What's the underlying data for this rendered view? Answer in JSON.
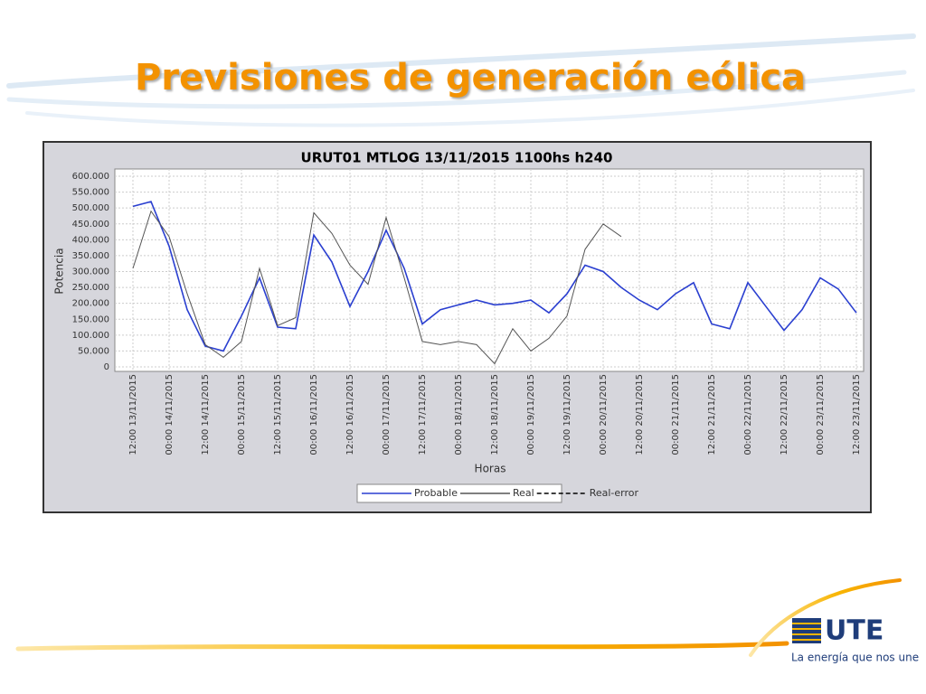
{
  "slide": {
    "title": "Previsiones de generación eólica",
    "logo": "UTE",
    "tagline": "La energía que nos une"
  },
  "chart_data": {
    "type": "line",
    "title": "URUT01  MTLOG  13/11/2015  1100hs   h240",
    "x_label": "Horas",
    "y_label": "Potencia",
    "x": [
      "13/11/2015 12:00",
      "13/11/2015 18:00",
      "14/11/2015 00:00",
      "14/11/2015 06:00",
      "14/11/2015 12:00",
      "14/11/2015 18:00",
      "15/11/2015 00:00",
      "15/11/2015 06:00",
      "15/11/2015 12:00",
      "15/11/2015 18:00",
      "16/11/2015 00:00",
      "16/11/2015 06:00",
      "16/11/2015 12:00",
      "16/11/2015 18:00",
      "17/11/2015 00:00",
      "17/11/2015 06:00",
      "17/11/2015 12:00",
      "17/11/2015 18:00",
      "18/11/2015 00:00",
      "18/11/2015 06:00",
      "18/11/2015 12:00",
      "18/11/2015 18:00",
      "19/11/2015 00:00",
      "19/11/2015 06:00",
      "19/11/2015 12:00",
      "19/11/2015 18:00",
      "20/11/2015 00:00",
      "20/11/2015 06:00",
      "20/11/2015 12:00",
      "20/11/2015 18:00",
      "21/11/2015 00:00",
      "21/11/2015 06:00",
      "21/11/2015 12:00",
      "21/11/2015 18:00",
      "22/11/2015 00:00",
      "22/11/2015 06:00",
      "22/11/2015 12:00",
      "22/11/2015 18:00",
      "23/11/2015 00:00",
      "23/11/2015 06:00",
      "23/11/2015 12:00"
    ],
    "series": [
      {
        "name": "Probable",
        "color": "#2a3fd0",
        "values": [
          505000,
          520000,
          380000,
          180000,
          65000,
          50000,
          160000,
          280000,
          125000,
          120000,
          415000,
          330000,
          190000,
          300000,
          430000,
          310000,
          135000,
          180000,
          195000,
          210000,
          195000,
          200000,
          210000,
          170000,
          230000,
          320000,
          300000,
          250000,
          210000,
          180000,
          230000,
          265000,
          135000,
          120000,
          265000,
          190000,
          115000,
          180000,
          280000,
          245000,
          170000
        ]
      },
      {
        "name": "Real",
        "color": "#555555",
        "values": [
          310000,
          490000,
          410000,
          230000,
          70000,
          30000,
          80000,
          310000,
          130000,
          155000,
          485000,
          420000,
          320000,
          260000,
          470000,
          280000,
          80000,
          70000,
          80000,
          70000,
          10000,
          120000,
          50000,
          90000,
          160000,
          370000,
          450000,
          410000,
          null,
          null,
          null,
          null,
          null,
          null,
          null,
          null,
          null,
          null,
          null,
          null,
          null
        ]
      },
      {
        "name": "Real-error",
        "color": "#000000",
        "dashed": true,
        "values": [
          null,
          null,
          null,
          null,
          null,
          null,
          null,
          null,
          null,
          null,
          null,
          null,
          null,
          null,
          null,
          null,
          null,
          null,
          null,
          null,
          null,
          null,
          null,
          null,
          null,
          null,
          null,
          null,
          null,
          null,
          null,
          null,
          null,
          null,
          null,
          null,
          null,
          null,
          null,
          null,
          null
        ]
      }
    ],
    "xlim": [
      "13/11/2015 12:00",
      "23/11/2015 12:00"
    ],
    "xticks": [
      {
        "value": "13/11/2015 12:00",
        "label": "12:00 13/11/2015"
      },
      {
        "value": "14/11/2015 00:00",
        "label": "00:00 14/11/2015"
      },
      {
        "value": "14/11/2015 12:00",
        "label": "12:00 14/11/2015"
      },
      {
        "value": "15/11/2015 00:00",
        "label": "00:00 15/11/2015"
      },
      {
        "value": "15/11/2015 12:00",
        "label": "12:00 15/11/2015"
      },
      {
        "value": "16/11/2015 00:00",
        "label": "00:00 16/11/2015"
      },
      {
        "value": "16/11/2015 12:00",
        "label": "12:00 16/11/2015"
      },
      {
        "value": "17/11/2015 00:00",
        "label": "00:00 17/11/2015"
      },
      {
        "value": "17/11/2015 12:00",
        "label": "12:00 17/11/2015"
      },
      {
        "value": "18/11/2015 00:00",
        "label": "00:00 18/11/2015"
      },
      {
        "value": "18/11/2015 12:00",
        "label": "12:00 18/11/2015"
      },
      {
        "value": "19/11/2015 00:00",
        "label": "00:00 19/11/2015"
      },
      {
        "value": "19/11/2015 12:00",
        "label": "12:00 19/11/2015"
      },
      {
        "value": "20/11/2015 00:00",
        "label": "00:00 20/11/2015"
      },
      {
        "value": "20/11/2015 12:00",
        "label": "12:00 20/11/2015"
      },
      {
        "value": "21/11/2015 00:00",
        "label": "00:00 21/11/2015"
      },
      {
        "value": "21/11/2015 12:00",
        "label": "12:00 21/11/2015"
      },
      {
        "value": "22/11/2015 00:00",
        "label": "00:00 22/11/2015"
      },
      {
        "value": "22/11/2015 12:00",
        "label": "12:00 22/11/2015"
      },
      {
        "value": "23/11/2015 00:00",
        "label": "00:00 23/11/2015"
      },
      {
        "value": "23/11/2015 12:00",
        "label": "12:00 23/11/2015"
      }
    ],
    "ylim": [
      0,
      600000
    ],
    "yticks": [
      0,
      {
        "value": 50000,
        "label": "50.000"
      },
      {
        "value": 100000,
        "label": "100.000"
      },
      {
        "value": 150000,
        "label": "150.000"
      },
      {
        "value": 200000,
        "label": "200.000"
      },
      {
        "value": 250000,
        "label": "250.000"
      },
      {
        "value": 300000,
        "label": "300.000"
      },
      {
        "value": 350000,
        "label": "350.000"
      },
      {
        "value": 400000,
        "label": "400.000"
      },
      {
        "value": 450000,
        "label": "450.000"
      },
      {
        "value": 500000,
        "label": "500.000"
      },
      {
        "value": 550000,
        "label": "550.000"
      },
      {
        "value": 600000,
        "label": "600.000"
      }
    ],
    "grid": true,
    "legend": "bottom"
  }
}
